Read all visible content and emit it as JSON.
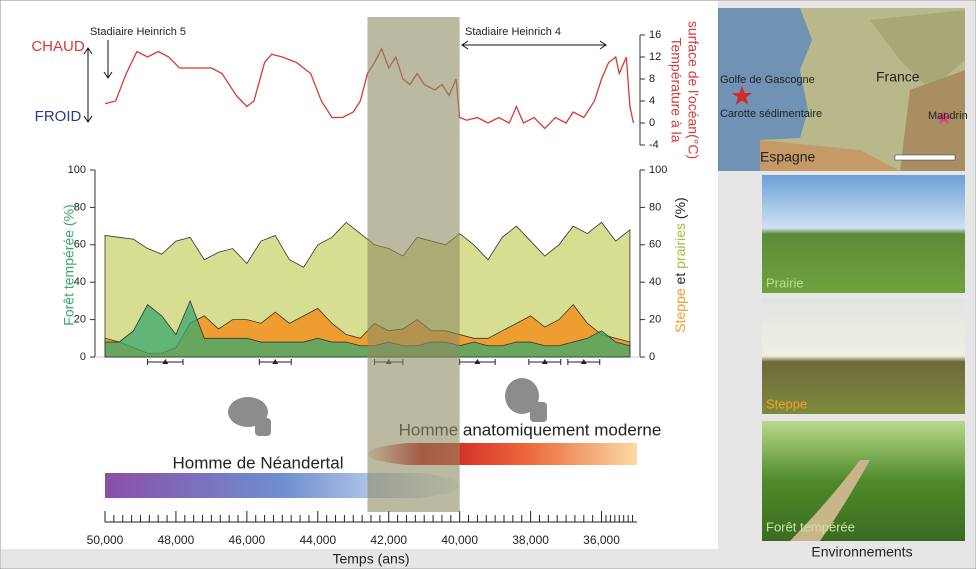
{
  "chart_data": [
    {
      "type": "line",
      "y_label": [
        "Température à la",
        "surface de l'océan(°C)"
      ],
      "annotations": {
        "warm": "CHAUD",
        "cold": "FROID",
        "h5": "Stadiaire Heinrich 5",
        "h4": "Stadiaire Heinrich 4"
      },
      "x": [
        50000,
        49700,
        49400,
        49100,
        48800,
        48500,
        48200,
        47900,
        47400,
        47000,
        46700,
        46300,
        46000,
        45800,
        45500,
        45300,
        45000,
        44600,
        44200,
        43900,
        43600,
        43300,
        43000,
        42800,
        42600,
        42400,
        42200,
        42000,
        41800,
        41600,
        41400,
        41200,
        41000,
        40700,
        40500,
        40300,
        40100,
        40000,
        39800,
        39500,
        39200,
        38900,
        38600,
        38400,
        38200,
        37900,
        37600,
        37300,
        37000,
        36800,
        36500,
        36200,
        36000,
        35800,
        35600,
        35500,
        35300,
        35200,
        35100
      ],
      "values": [
        3.5,
        4,
        9,
        13,
        12,
        13,
        12,
        10,
        10,
        10,
        9,
        5,
        3,
        4,
        11,
        12.5,
        12,
        11,
        9,
        4,
        1,
        1,
        2,
        4,
        9,
        11,
        13.5,
        10,
        12,
        8,
        7,
        9,
        7,
        6,
        7,
        5,
        8,
        1,
        0.5,
        1,
        0,
        1,
        0,
        3,
        0,
        1,
        -1,
        1,
        0,
        2,
        1,
        4,
        8,
        11,
        12,
        9,
        12,
        3,
        0
      ],
      "color": "#d63a3a",
      "xlim": [
        50000,
        35000
      ],
      "ylim": [
        -4,
        16
      ],
      "yticks": [
        -4,
        0,
        4,
        8,
        12,
        16
      ],
      "highlight": [
        42600,
        40000
      ]
    },
    {
      "type": "area",
      "y_label": "Forêt tempérée (%)",
      "y2_label": [
        "Steppe",
        "et",
        "prairies",
        "(%)"
      ],
      "x_label": "Temps (ans)",
      "x": [
        50000,
        49600,
        49200,
        48800,
        48400,
        48000,
        47600,
        47200,
        46800,
        46400,
        46000,
        45600,
        45200,
        44800,
        44400,
        44000,
        43600,
        43200,
        42800,
        42400,
        42000,
        41600,
        41200,
        40800,
        40400,
        40000,
        39600,
        39200,
        38800,
        38400,
        38000,
        37600,
        37200,
        36800,
        36400,
        36000,
        35600,
        35200
      ],
      "series": [
        {
          "color": "#d5dc8c",
          "axis": "y2",
          "values": [
            65,
            64,
            63,
            58,
            55,
            62,
            64,
            52,
            56,
            58,
            50,
            62,
            65,
            52,
            48,
            60,
            64,
            72,
            66,
            60,
            58,
            54,
            64,
            62,
            60,
            66,
            60,
            52,
            64,
            70,
            62,
            54,
            60,
            70,
            66,
            72,
            62,
            68
          ]
        },
        {
          "color": "#ef9a2c",
          "axis": "y2",
          "values": [
            10,
            8,
            5,
            2,
            2,
            5,
            18,
            22,
            15,
            20,
            20,
            18,
            24,
            18,
            22,
            26,
            18,
            12,
            10,
            18,
            14,
            15,
            20,
            14,
            14,
            12,
            10,
            10,
            14,
            18,
            22,
            16,
            20,
            28,
            18,
            12,
            10,
            8
          ]
        },
        {
          "color": "#3aa86b",
          "values": [
            8,
            8,
            14,
            28,
            22,
            12,
            30,
            10,
            10,
            10,
            10,
            8,
            8,
            8,
            8,
            10,
            8,
            8,
            6,
            6,
            8,
            6,
            6,
            8,
            8,
            6,
            8,
            6,
            6,
            8,
            8,
            6,
            6,
            8,
            10,
            14,
            8,
            6
          ]
        }
      ],
      "dates": {
        "x": [
          48300,
          45200,
          42000,
          39500,
          37600,
          36500
        ],
        "err": [
          500,
          450,
          400,
          500,
          450,
          450
        ]
      },
      "populations": [
        {
          "label": "Homme de Néandertal",
          "start": 50000,
          "end": 40000
        },
        {
          "label": "Homme anatomiquement moderne",
          "start": 42600,
          "end": 35000
        }
      ],
      "xlim": [
        50000,
        35000
      ],
      "xticks": [
        {
          "value": 50000,
          "label": "50,000"
        },
        {
          "value": 48000,
          "label": "48,000"
        },
        {
          "value": 46000,
          "label": "46,000"
        },
        {
          "value": 44000,
          "label": "44,000"
        },
        {
          "value": 42000,
          "label": "42,000"
        },
        {
          "value": 40000,
          "label": "40,000"
        },
        {
          "value": 38000,
          "label": "38,000"
        },
        {
          "value": 36000,
          "label": "36,000"
        }
      ],
      "ylim": [
        0,
        100
      ],
      "yticks": [
        0,
        20,
        40,
        60,
        80,
        100
      ],
      "y2lim": [
        0,
        100
      ],
      "y2ticks": [
        0,
        20,
        40,
        60,
        80,
        100
      ]
    }
  ],
  "map": {
    "labels": [
      "Golfe de Gascogne",
      "Carotte sédimentaire",
      "France",
      "Espagne",
      "Mandrin"
    ]
  },
  "photos": [
    "Prairie",
    "Steppe",
    "Forêt tempérée"
  ],
  "caption": "Environnements"
}
